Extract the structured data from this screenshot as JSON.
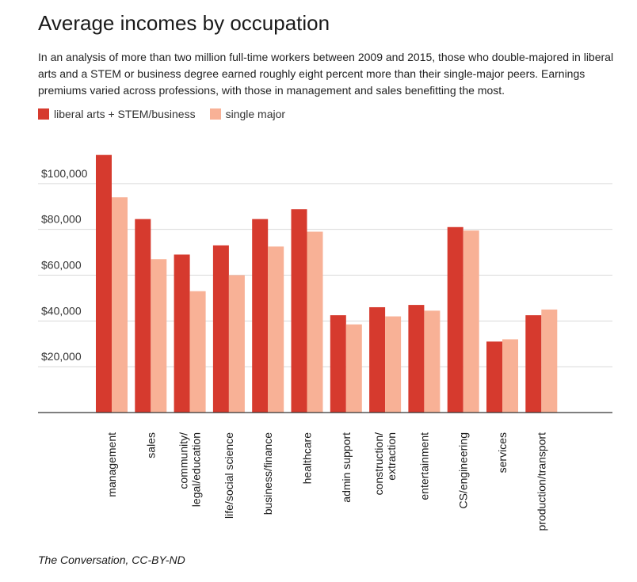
{
  "chart_data": {
    "type": "bar",
    "title": "Average incomes by occupation",
    "subtitle": "In an analysis of more than two million full-time workers between 2009 and 2015, those who double-majored in liberal arts and a STEM or business degree earned roughly eight percent more than their single-major peers. Earnings premiums varied across professions, with those in management and sales benefitting the most.",
    "categories": [
      [
        "management"
      ],
      [
        "sales"
      ],
      [
        "community/",
        "legal/education"
      ],
      [
        "life/social science"
      ],
      [
        "business/finance"
      ],
      [
        "healthcare"
      ],
      [
        "admin support"
      ],
      [
        "construction/",
        "extraction"
      ],
      [
        "entertainment"
      ],
      [
        "CS/engineering"
      ],
      [
        "services"
      ],
      [
        "production/transport"
      ]
    ],
    "series": [
      {
        "name": "liberal arts + STEM/business",
        "color": "#d63a2e",
        "values": [
          112500,
          84500,
          69000,
          73000,
          84500,
          88800,
          42500,
          46000,
          47000,
          81000,
          31000,
          42500
        ]
      },
      {
        "name": "single major",
        "color": "#f8b196",
        "values": [
          94000,
          67000,
          53000,
          60000,
          72500,
          79000,
          38500,
          42000,
          44500,
          79500,
          32000,
          45000
        ]
      }
    ],
    "yticks": [
      20000,
      40000,
      60000,
      80000,
      100000
    ],
    "ytick_labels": [
      "$20,000",
      "$40,000",
      "$60,000",
      "$80,000",
      "$100,000"
    ],
    "ylim": [
      0,
      120000
    ],
    "xlabel": "",
    "ylabel": "",
    "grid": true,
    "legend_position": "top-left"
  },
  "source": "The Conversation, CC-BY-ND"
}
